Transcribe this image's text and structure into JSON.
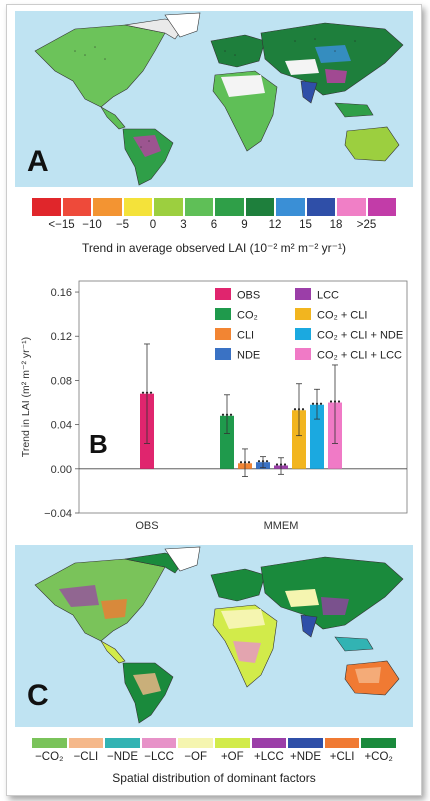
{
  "panel_a": {
    "letter": "A",
    "colorbar": {
      "colors": [
        "#e0262b",
        "#ee4a3a",
        "#f39432",
        "#f4e23a",
        "#9ccf3f",
        "#5fbf57",
        "#2f9f48",
        "#1e7f3c",
        "#3a8fd6",
        "#2f4fa8",
        "#f07fc6",
        "#c23ca8"
      ],
      "tick_labels": [
        "<−15",
        "−10",
        "−5",
        "0",
        "3",
        "6",
        "9",
        "12",
        "15",
        "18",
        ">25"
      ]
    },
    "caption": "Trend in average observed LAI (10⁻² m² m⁻² yr⁻¹)"
  },
  "panel_b": {
    "letter": "B",
    "ylabel": "Trend in LAI (m² m⁻² yr⁻¹)",
    "y_ticks": [
      "0.16",
      "0.12",
      "0.08",
      "0.04",
      "0.00",
      "−0.04"
    ],
    "x_labels": [
      "OBS",
      "MMEM"
    ],
    "legend": [
      {
        "label": "OBS",
        "color": "#e0256e"
      },
      {
        "label": "LCC",
        "color": "#9b3ea8"
      },
      {
        "label": "CO₂",
        "color": "#1f9a4c"
      },
      {
        "label": "CO₂ + CLI",
        "color": "#f2b51f"
      },
      {
        "label": "CLI",
        "color": "#f28533"
      },
      {
        "label": "CO₂ + CLI + NDE",
        "color": "#1ba9e0"
      },
      {
        "label": "NDE",
        "color": "#3a72c4"
      },
      {
        "label": "CO₂ + CLI + LCC",
        "color": "#f07ac6"
      }
    ]
  },
  "chart_data": {
    "type": "bar",
    "title": "",
    "xlabel": "",
    "ylabel": "Trend in LAI (m² m⁻² yr⁻¹)",
    "ylim": [
      -0.04,
      0.17
    ],
    "categories": [
      "OBS",
      "MMEM"
    ],
    "series": [
      {
        "name": "OBS",
        "group": "OBS",
        "value": 0.068,
        "err_low": 0.023,
        "err_high": 0.113,
        "color": "#e0256e"
      },
      {
        "name": "CO₂",
        "group": "MMEM",
        "value": 0.048,
        "err_low": 0.032,
        "err_high": 0.067,
        "color": "#1f9a4c"
      },
      {
        "name": "CLI",
        "group": "MMEM",
        "value": 0.005,
        "err_low": -0.007,
        "err_high": 0.018,
        "color": "#f28533"
      },
      {
        "name": "NDE",
        "group": "MMEM",
        "value": 0.006,
        "err_low": 0.001,
        "err_high": 0.011,
        "color": "#3a72c4"
      },
      {
        "name": "LCC",
        "group": "MMEM",
        "value": 0.003,
        "err_low": -0.005,
        "err_high": 0.01,
        "color": "#9b3ea8"
      },
      {
        "name": "CO₂ + CLI",
        "group": "MMEM",
        "value": 0.053,
        "err_low": 0.03,
        "err_high": 0.077,
        "color": "#f2b51f"
      },
      {
        "name": "CO₂ + CLI + NDE",
        "group": "MMEM",
        "value": 0.058,
        "err_low": 0.045,
        "err_high": 0.072,
        "color": "#1ba9e0"
      },
      {
        "name": "CO₂ + CLI + LCC",
        "group": "MMEM",
        "value": 0.06,
        "err_low": 0.023,
        "err_high": 0.094,
        "color": "#f07ac6"
      }
    ]
  },
  "panel_c": {
    "letter": "C",
    "colorbar": {
      "colors": [
        "#7ac35a",
        "#f5b88a",
        "#32b3b3",
        "#e792c8",
        "#f5f5b0",
        "#d2eb4a",
        "#9b3ea8",
        "#2f4fa8",
        "#f07a33",
        "#1a8a3c"
      ],
      "tick_labels": [
        "−CO₂",
        "−CLI",
        "−NDE",
        "−LCC",
        "−OF",
        "+OF",
        "+LCC",
        "+NDE",
        "+CLI",
        "+CO₂"
      ]
    },
    "caption": "Spatial distribution of dominant factors"
  }
}
